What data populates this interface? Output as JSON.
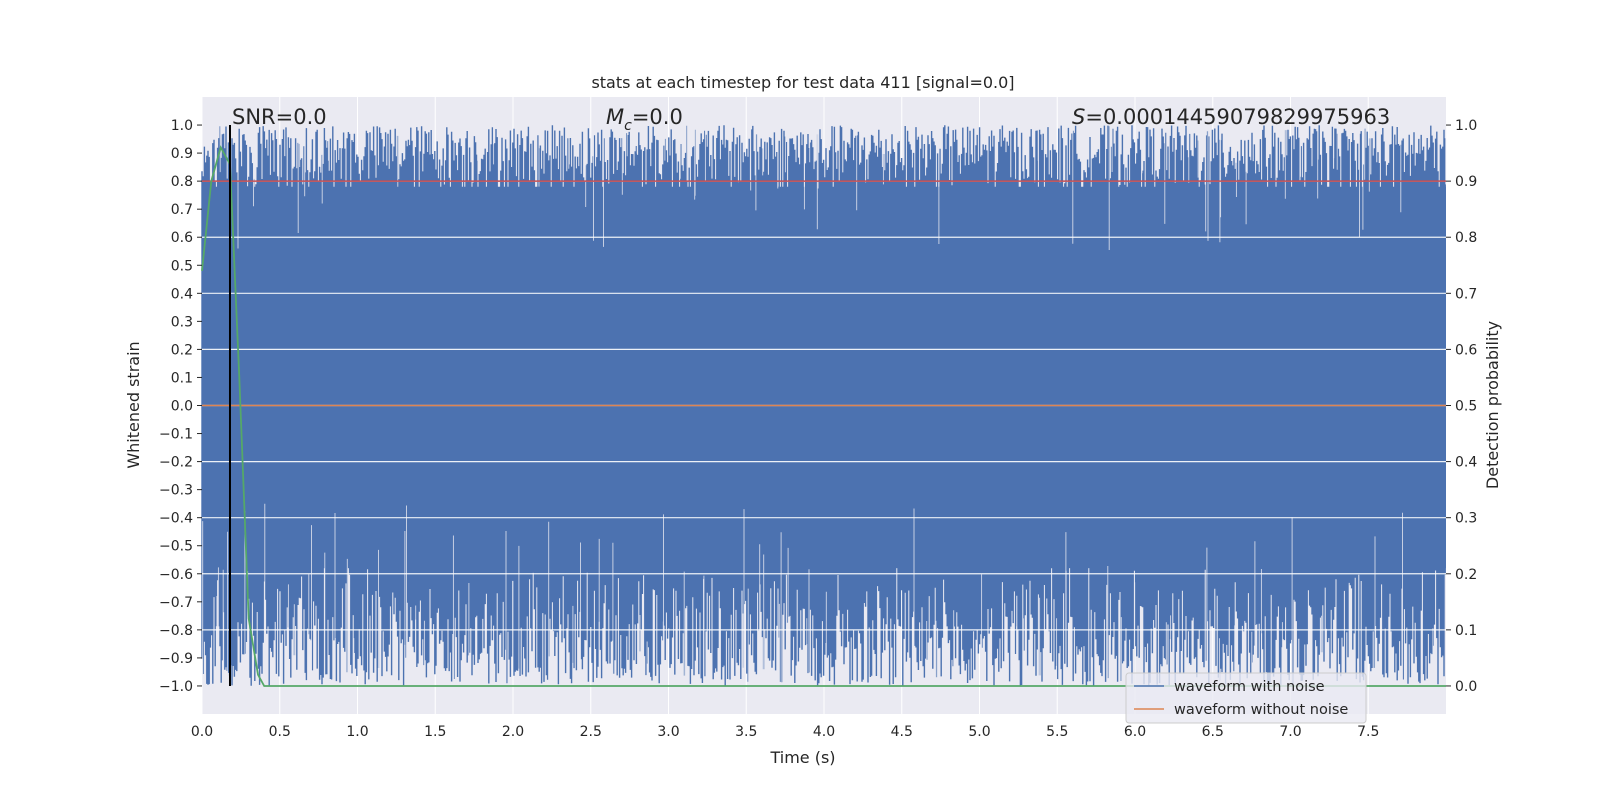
{
  "chart_data": {
    "type": "line",
    "title": "stats at each timestep for test data 411 [signal=0.0]",
    "xlabel": "Time (s)",
    "ylabel_left": "Whitened strain",
    "ylabel_right": "Detection probability",
    "xlim": [
      0.0,
      8.0
    ],
    "ylim_left": [
      -1.1,
      1.1
    ],
    "ylim_right": [
      -0.05,
      1.05
    ],
    "x_ticks": [
      "0.0",
      "0.5",
      "1.0",
      "1.5",
      "2.0",
      "2.5",
      "3.0",
      "3.5",
      "4.0",
      "4.5",
      "5.0",
      "5.5",
      "6.0",
      "6.5",
      "7.0",
      "7.5"
    ],
    "y_ticks_left": [
      "1.0",
      "0.9",
      "0.8",
      "0.7",
      "0.6",
      "0.5",
      "0.4",
      "0.3",
      "0.2",
      "0.1",
      "0.0",
      "−0.1",
      "−0.2",
      "−0.3",
      "−0.4",
      "−0.5",
      "−0.6",
      "−0.7",
      "−0.8",
      "−0.9",
      "−1.0"
    ],
    "y_ticks_right": [
      "1.0",
      "0.9",
      "0.8",
      "0.7",
      "0.6",
      "0.5",
      "0.4",
      "0.3",
      "0.2",
      "0.1",
      "0.0"
    ],
    "grid": true,
    "legend_position": "lower right",
    "annotations": {
      "snr": "SNR=0.0",
      "mc_symbol": "M",
      "mc_subscript": "c",
      "mc_value": "=0.0",
      "s_symbol": "S",
      "s_value": "=0.00014459079829975963"
    },
    "series": [
      {
        "name": "waveform with noise",
        "axis": "left",
        "color": "#4c72b0",
        "description_x_range": [
          0.0,
          8.0
        ],
        "band_range": [
          -1.0,
          1.0
        ]
      },
      {
        "name": "waveform without noise",
        "axis": "left",
        "color": "#dd8452",
        "x": [
          0.0,
          8.0
        ],
        "y": [
          0.0,
          0.0
        ]
      },
      {
        "name": "",
        "axis": "right",
        "color": "#55a868",
        "x": [
          0.0,
          0.06,
          0.12,
          0.18,
          0.24,
          0.3,
          0.36,
          0.4,
          8.0
        ],
        "y": [
          0.74,
          0.9,
          0.96,
          0.93,
          0.55,
          0.12,
          0.02,
          0.0,
          0.0
        ]
      },
      {
        "name": "",
        "axis": "right",
        "color": "#c44e52",
        "x": [
          0.0,
          8.0
        ],
        "y": [
          0.9,
          0.9
        ]
      }
    ],
    "vline_x": 0.18,
    "vline_color": "#000000"
  },
  "colors": {
    "axes_bg": "#eaeaf2",
    "grid": "#ffffff",
    "noise": "#4c72b0",
    "clean": "#dd8452",
    "prob": "#55a868",
    "threshold": "#c44e52"
  }
}
